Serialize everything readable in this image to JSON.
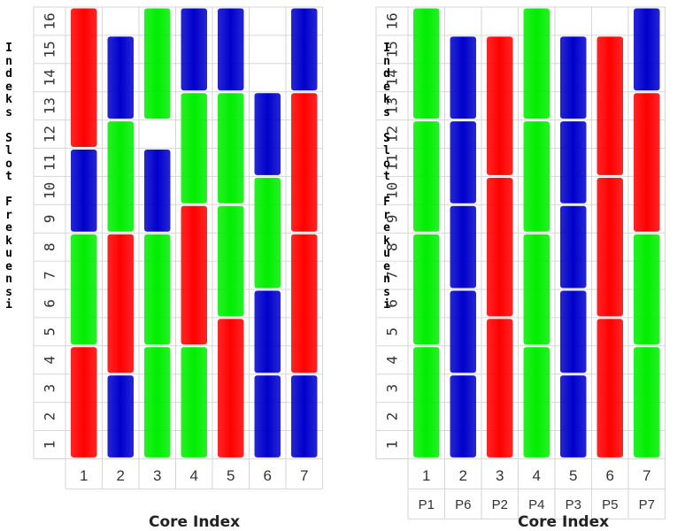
{
  "chart_data": [
    {
      "type": "bar",
      "y_axis_label": "Indeks Slot Frekuensi",
      "x_axis_label": "Core Index",
      "categories": [
        "1",
        "2",
        "3",
        "4",
        "5",
        "6",
        "7"
      ],
      "y_ticks": [
        "1",
        "2",
        "3",
        "4",
        "5",
        "6",
        "7",
        "8",
        "9",
        "10",
        "11",
        "12",
        "13",
        "14",
        "15",
        "16"
      ],
      "colors": {
        "red": "#ff0000",
        "green": "#00ee00",
        "blue": "#0000cc"
      },
      "blocks": [
        {
          "core": "1",
          "color": "red",
          "from": 1,
          "to": 4
        },
        {
          "core": "1",
          "color": "green",
          "from": 5,
          "to": 8
        },
        {
          "core": "1",
          "color": "blue",
          "from": 9,
          "to": 11
        },
        {
          "core": "1",
          "color": "red",
          "from": 12,
          "to": 16
        },
        {
          "core": "2",
          "color": "blue",
          "from": 1,
          "to": 3
        },
        {
          "core": "2",
          "color": "red",
          "from": 4,
          "to": 8
        },
        {
          "core": "2",
          "color": "green",
          "from": 9,
          "to": 12
        },
        {
          "core": "2",
          "color": "blue",
          "from": 13,
          "to": 15
        },
        {
          "core": "3",
          "color": "green",
          "from": 1,
          "to": 4
        },
        {
          "core": "3",
          "color": "green",
          "from": 5,
          "to": 8
        },
        {
          "core": "3",
          "color": "blue",
          "from": 9,
          "to": 11
        },
        {
          "core": "3",
          "color": "green",
          "from": 13,
          "to": 16
        },
        {
          "core": "4",
          "color": "green",
          "from": 1,
          "to": 4
        },
        {
          "core": "4",
          "color": "red",
          "from": 5,
          "to": 9
        },
        {
          "core": "4",
          "color": "green",
          "from": 10,
          "to": 13
        },
        {
          "core": "4",
          "color": "blue",
          "from": 14,
          "to": 16
        },
        {
          "core": "5",
          "color": "red",
          "from": 1,
          "to": 5
        },
        {
          "core": "5",
          "color": "green",
          "from": 6,
          "to": 9
        },
        {
          "core": "5",
          "color": "green",
          "from": 10,
          "to": 13
        },
        {
          "core": "5",
          "color": "blue",
          "from": 14,
          "to": 16
        },
        {
          "core": "6",
          "color": "blue",
          "from": 1,
          "to": 3
        },
        {
          "core": "6",
          "color": "blue",
          "from": 4,
          "to": 6
        },
        {
          "core": "6",
          "color": "green",
          "from": 7,
          "to": 10
        },
        {
          "core": "6",
          "color": "blue",
          "from": 11,
          "to": 13
        },
        {
          "core": "7",
          "color": "blue",
          "from": 1,
          "to": 3
        },
        {
          "core": "7",
          "color": "red",
          "from": 4,
          "to": 8
        },
        {
          "core": "7",
          "color": "red",
          "from": 9,
          "to": 13
        },
        {
          "core": "7",
          "color": "blue",
          "from": 14,
          "to": 16
        }
      ]
    },
    {
      "type": "bar",
      "y_axis_label": "Indeks Slot Frekuensi",
      "x_axis_label": "Core Index",
      "categories": [
        "1",
        "2",
        "3",
        "4",
        "5",
        "6",
        "7"
      ],
      "secondary_labels": [
        "P1",
        "P6",
        "P2",
        "P4",
        "P3",
        "P5",
        "P7"
      ],
      "y_ticks": [
        "1",
        "2",
        "3",
        "4",
        "5",
        "6",
        "7",
        "8",
        "9",
        "10",
        "11",
        "12",
        "13",
        "14",
        "15",
        "16"
      ],
      "colors": {
        "red": "#ff0000",
        "green": "#00ee00",
        "blue": "#0000cc"
      },
      "blocks": [
        {
          "core": "1",
          "color": "green",
          "from": 1,
          "to": 4
        },
        {
          "core": "1",
          "color": "green",
          "from": 5,
          "to": 8
        },
        {
          "core": "1",
          "color": "green",
          "from": 9,
          "to": 12
        },
        {
          "core": "1",
          "color": "green",
          "from": 13,
          "to": 16
        },
        {
          "core": "2",
          "color": "blue",
          "from": 1,
          "to": 3
        },
        {
          "core": "2",
          "color": "blue",
          "from": 4,
          "to": 6
        },
        {
          "core": "2",
          "color": "blue",
          "from": 7,
          "to": 9
        },
        {
          "core": "2",
          "color": "blue",
          "from": 10,
          "to": 12
        },
        {
          "core": "2",
          "color": "blue",
          "from": 13,
          "to": 15
        },
        {
          "core": "3",
          "color": "red",
          "from": 1,
          "to": 5
        },
        {
          "core": "3",
          "color": "red",
          "from": 6,
          "to": 10
        },
        {
          "core": "3",
          "color": "red",
          "from": 11,
          "to": 15
        },
        {
          "core": "4",
          "color": "green",
          "from": 1,
          "to": 4
        },
        {
          "core": "4",
          "color": "green",
          "from": 5,
          "to": 8
        },
        {
          "core": "4",
          "color": "green",
          "from": 9,
          "to": 12
        },
        {
          "core": "4",
          "color": "green",
          "from": 13,
          "to": 16
        },
        {
          "core": "5",
          "color": "blue",
          "from": 1,
          "to": 3
        },
        {
          "core": "5",
          "color": "blue",
          "from": 4,
          "to": 6
        },
        {
          "core": "5",
          "color": "blue",
          "from": 7,
          "to": 9
        },
        {
          "core": "5",
          "color": "blue",
          "from": 10,
          "to": 12
        },
        {
          "core": "5",
          "color": "blue",
          "from": 13,
          "to": 15
        },
        {
          "core": "6",
          "color": "red",
          "from": 1,
          "to": 5
        },
        {
          "core": "6",
          "color": "red",
          "from": 6,
          "to": 10
        },
        {
          "core": "6",
          "color": "red",
          "from": 11,
          "to": 15
        },
        {
          "core": "7",
          "color": "green",
          "from": 1,
          "to": 4
        },
        {
          "core": "7",
          "color": "green",
          "from": 5,
          "to": 8
        },
        {
          "core": "7",
          "color": "red",
          "from": 9,
          "to": 13
        },
        {
          "core": "7",
          "color": "blue",
          "from": 14,
          "to": 16
        }
      ]
    }
  ]
}
